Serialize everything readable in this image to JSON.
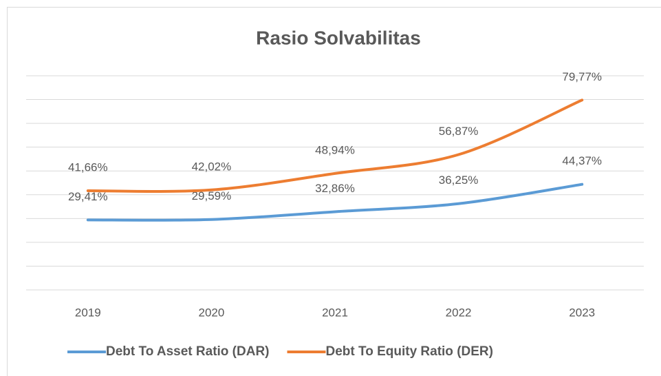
{
  "chart_data": {
    "type": "line",
    "title": "Rasio Solvabilitas",
    "categories": [
      "2019",
      "2020",
      "2021",
      "2022",
      "2023"
    ],
    "series": [
      {
        "name": "Debt To Asset Ratio (DAR)",
        "color": "#5b9bd5",
        "values": [
          29.41,
          29.59,
          32.86,
          36.25,
          44.37
        ],
        "value_labels": [
          "29,41%",
          "29,59%",
          "32,86%",
          "36,25%",
          "44,37%"
        ]
      },
      {
        "name": "Debt To Equity Ratio (DER)",
        "color": "#ed7d31",
        "values": [
          41.66,
          42.02,
          48.94,
          56.87,
          79.77
        ],
        "value_labels": [
          "41,66%",
          "42,02%",
          "48,94%",
          "56,87%",
          "79,77%"
        ]
      }
    ],
    "ylim": [
      0,
      90
    ],
    "yticks": [
      0,
      10,
      20,
      30,
      40,
      50,
      60,
      70,
      80,
      90
    ],
    "grid": true,
    "legend": "bottom"
  }
}
